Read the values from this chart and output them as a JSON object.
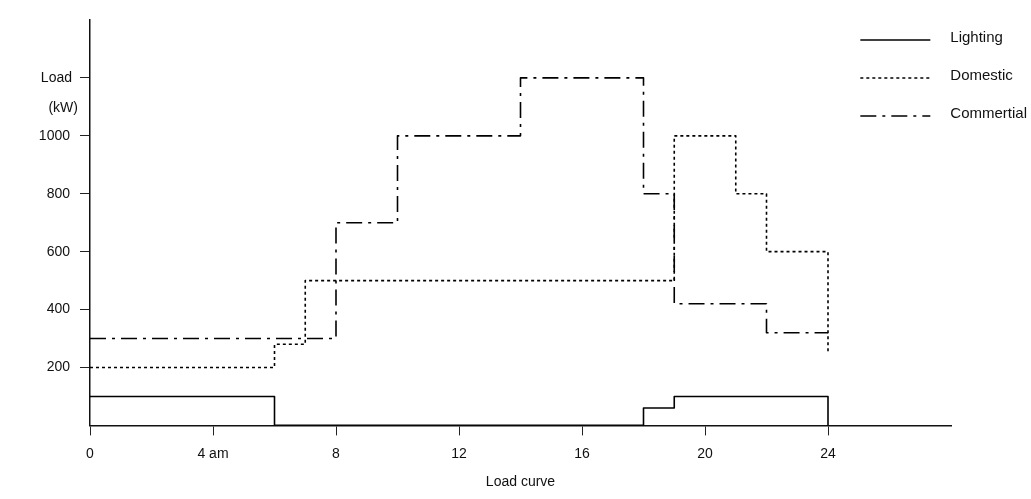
{
  "chart_data": {
    "type": "step",
    "xlabel": "Load curve",
    "ylabel": "Load (kW)",
    "xlim": [
      0,
      28
    ],
    "xticks": [
      0,
      {
        "value": 4,
        "label": "4 am"
      },
      8,
      12,
      16,
      20,
      24
    ],
    "ylim": [
      0,
      1400
    ],
    "yticks": [
      200,
      400,
      600,
      800,
      1000,
      {
        "value": 1200,
        "label": null
      }
    ],
    "grid": false,
    "legend": "top right",
    "marker": "none",
    "series": [
      {
        "name": "Lighting",
        "color": "#000000",
        "line_style": "solid",
        "x": [
          0,
          6,
          18,
          19,
          24
        ],
        "values": [
          100,
          0,
          60,
          100,
          0
        ]
      },
      {
        "name": "Domestic",
        "color": "#000000",
        "line_style": "dotted",
        "x": [
          0,
          6,
          7,
          19,
          21,
          22,
          24
        ],
        "values": [
          200,
          280,
          500,
          1000,
          800,
          600,
          250
        ]
      },
      {
        "name": "Commertial",
        "color": "#000000",
        "line_style": "dashed",
        "x": [
          0,
          8,
          10,
          14,
          18,
          19,
          22,
          24
        ],
        "values": [
          300,
          700,
          1000,
          1200,
          800,
          420,
          320,
          320
        ]
      }
    ]
  }
}
